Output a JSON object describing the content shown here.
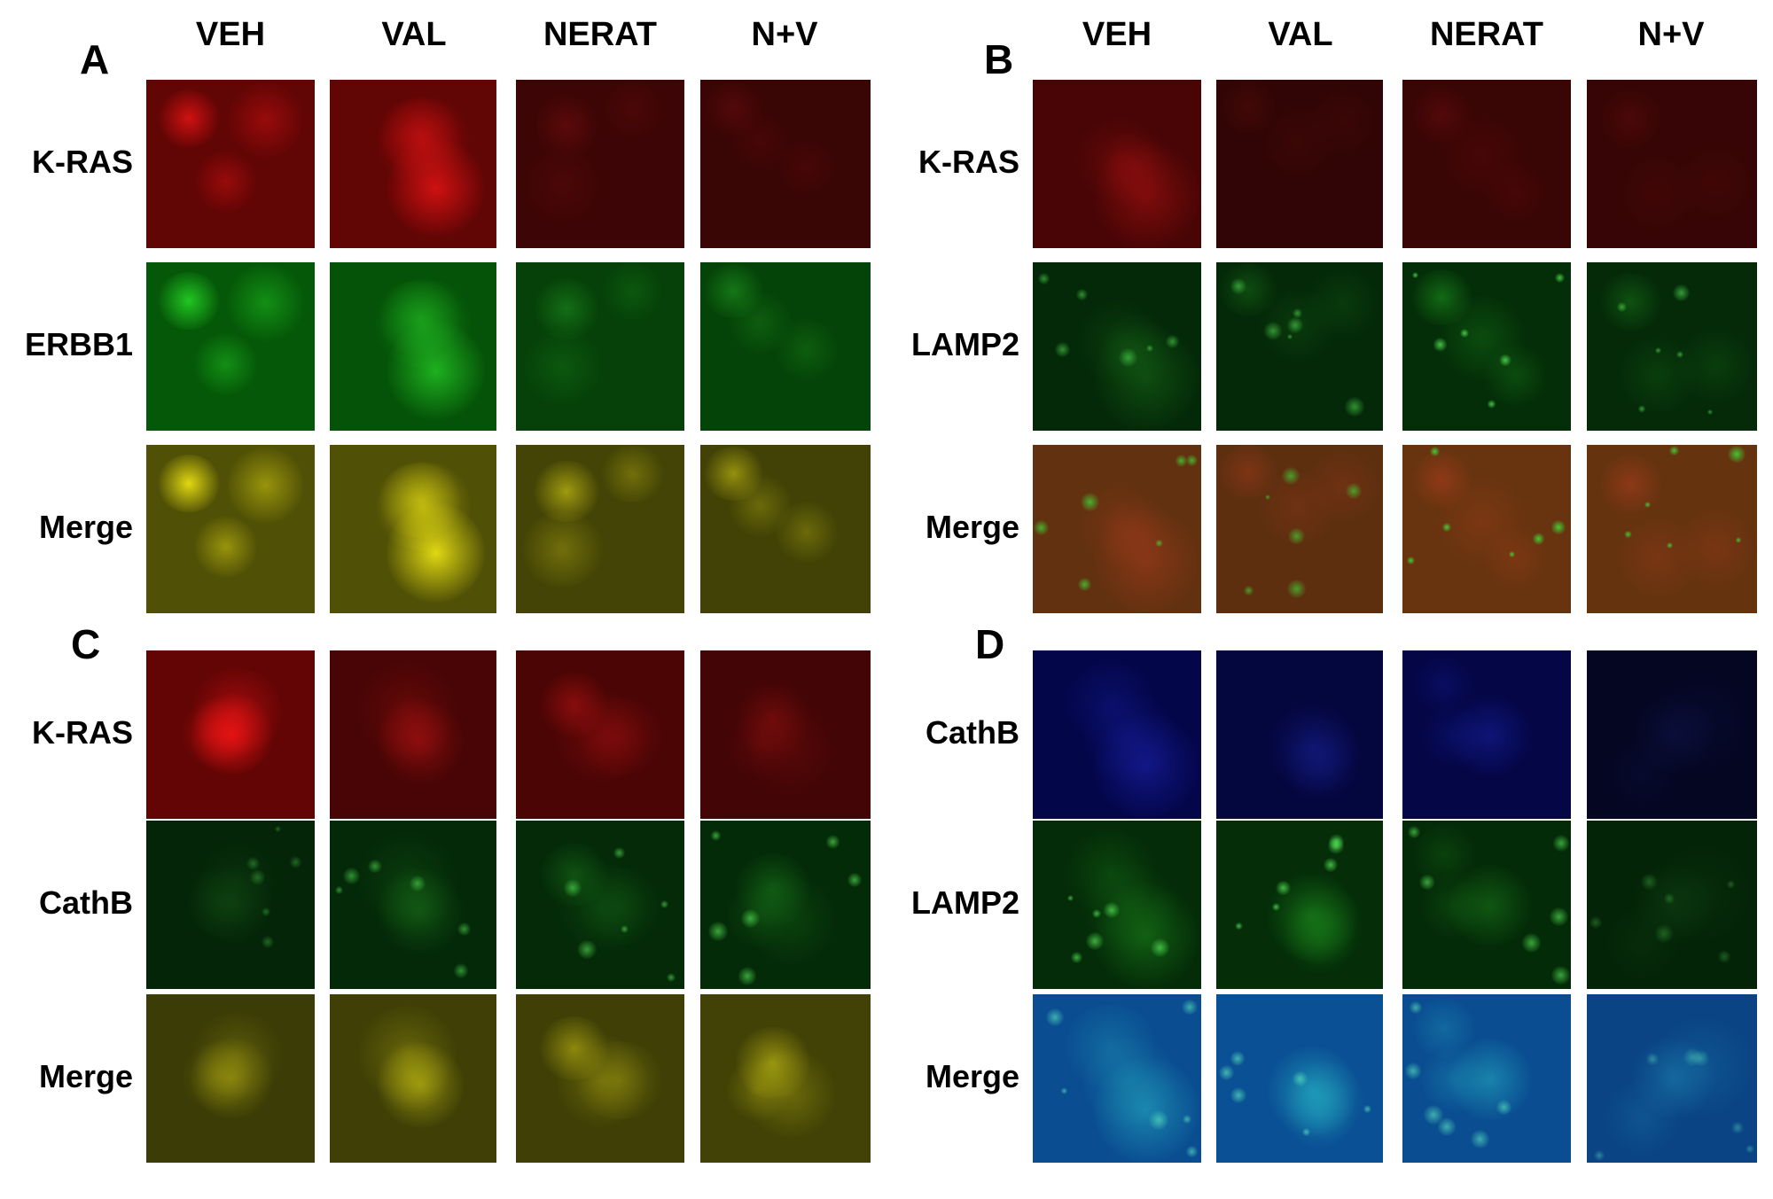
{
  "columns": [
    "VEH",
    "VAL",
    "NERAT",
    "N+V"
  ],
  "panels": [
    {
      "letter": "A",
      "rows": [
        {
          "label": "K-RAS",
          "channel": "red",
          "intensity": [
            0.95,
            0.95,
            0.35,
            0.3
          ]
        },
        {
          "label": "ERBB1",
          "channel": "green",
          "intensity": [
            0.95,
            0.85,
            0.5,
            0.55
          ]
        },
        {
          "label": "Merge",
          "channel": "yellow",
          "intensity": [
            1.0,
            1.0,
            0.7,
            0.65
          ]
        }
      ]
    },
    {
      "letter": "B",
      "rows": [
        {
          "label": "K-RAS",
          "channel": "red",
          "intensity": [
            0.55,
            0.15,
            0.3,
            0.25
          ]
        },
        {
          "label": "LAMP2",
          "channel": "green-puncta",
          "intensity": [
            0.55,
            0.55,
            0.8,
            0.6
          ]
        },
        {
          "label": "Merge",
          "channel": "red-green",
          "intensity": [
            0.7,
            0.6,
            0.85,
            0.8
          ]
        }
      ]
    },
    {
      "letter": "C",
      "rows": [
        {
          "label": "K-RAS",
          "channel": "red",
          "intensity": [
            1.0,
            0.55,
            0.6,
            0.45
          ]
        },
        {
          "label": "CathB",
          "channel": "green-puncta",
          "intensity": [
            0.35,
            0.55,
            0.6,
            0.65
          ]
        },
        {
          "label": "Merge",
          "channel": "yellow",
          "intensity": [
            0.5,
            0.6,
            0.6,
            0.65
          ]
        }
      ]
    },
    {
      "letter": "D",
      "rows": [
        {
          "label": "CathB",
          "channel": "blue",
          "intensity": [
            0.55,
            0.4,
            0.5,
            0.05
          ]
        },
        {
          "label": "LAMP2",
          "channel": "green-puncta",
          "intensity": [
            0.7,
            0.75,
            0.65,
            0.3
          ]
        },
        {
          "label": "Merge",
          "channel": "blue-green",
          "intensity": [
            0.7,
            0.75,
            0.7,
            0.45
          ]
        }
      ]
    }
  ],
  "colors": {
    "red": "#c81414",
    "green": "#2ea62e",
    "yellow": "#d8d21e",
    "blue": "#1e28d8"
  }
}
